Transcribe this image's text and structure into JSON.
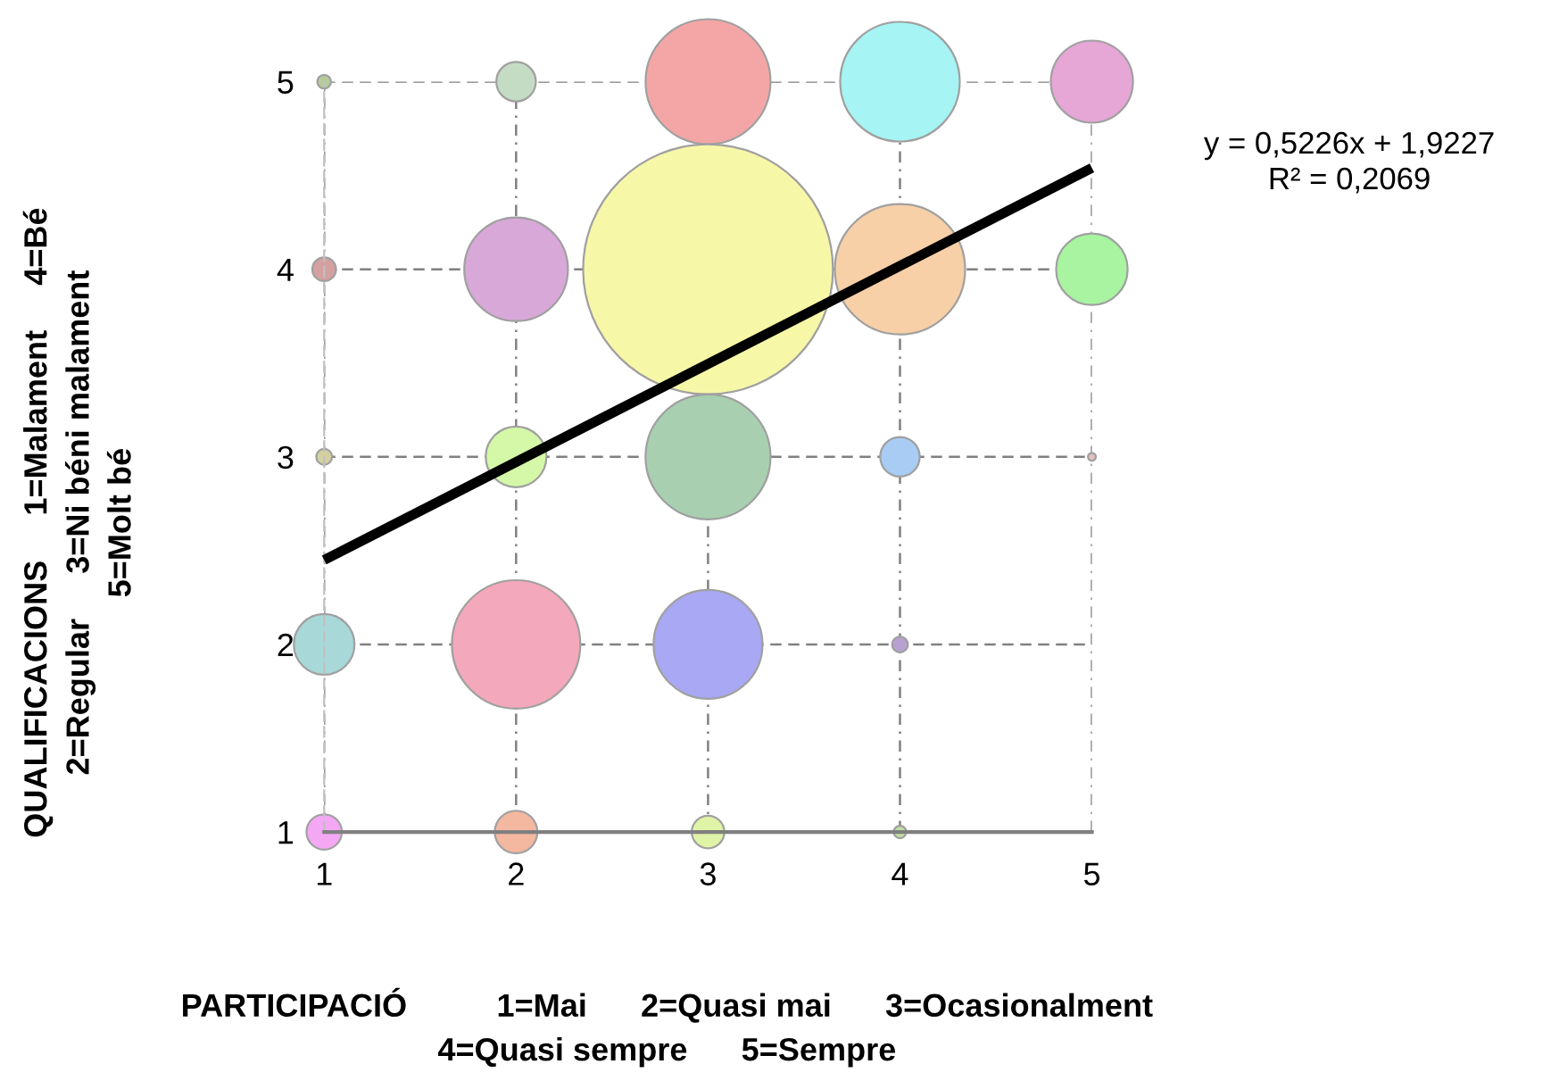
{
  "chart_data": {
    "type": "bubble",
    "xlabel": "PARTICIPACIÓ          1=Mai      2=Quasi mai      3=Ocasionalment\n4=Quasi sempre      5=Sempre",
    "ylabel": "QUALIFICACIONS     1=Malament     4=Bé\n2=Regular     3=Ni béni malament\n5=Molt bé",
    "xlim": [
      1,
      5
    ],
    "ylim": [
      1,
      5
    ],
    "xticks": [
      1,
      2,
      3,
      4,
      5
    ],
    "yticks": [
      1,
      2,
      3,
      4,
      5
    ],
    "grid": true,
    "legend": false,
    "annotations": [
      "y = 0,5226x + 1,9227\nR² = 0,2069"
    ],
    "series": [
      {
        "x": [
          1,
          2,
          3,
          4,
          5,
          1,
          2,
          3,
          4,
          5,
          1,
          2,
          3,
          4,
          5,
          1,
          2,
          3,
          4,
          1,
          2,
          3,
          4
        ],
        "values": [
          5,
          5,
          5,
          5,
          5,
          4,
          4,
          4,
          4,
          4,
          3,
          3,
          3,
          3,
          3,
          2,
          2,
          2,
          2,
          1,
          1,
          1,
          1
        ],
        "sizes": [
          0.003,
          0.025,
          0.25,
          0.229,
          0.108,
          0.009,
          0.172,
          1,
          0.272,
          0.082,
          0.004,
          0.059,
          0.25,
          0.025,
          0.001,
          0.059,
          0.264,
          0.19,
          0.004,
          0.02,
          0.029,
          0.017,
          0.0025
        ],
        "colors": [
          "#b5cc99",
          "#c4dcc4",
          "#f4a6a6",
          "#a6f4f4",
          "#e6a6d6",
          "#d4a0a0",
          "#d8a8d8",
          "#f7f7a8",
          "#f7d0a8",
          "#a8f4a0",
          "#d4d0a0",
          "#d4f8a8",
          "#a8d0b0",
          "#a8ccf4",
          "#e0c0c0",
          "#a8d8d8",
          "#f4a8bc",
          "#a8a8f4",
          "#b8a0d0",
          "#f4a8f4",
          "#f4b8a0",
          "#e0f4a8",
          "#c0e0a0"
        ]
      },
      {
        "type": "line",
        "x": [
          1,
          5
        ],
        "values": [
          2.45,
          4.54
        ],
        "color": "#000000"
      }
    ]
  }
}
